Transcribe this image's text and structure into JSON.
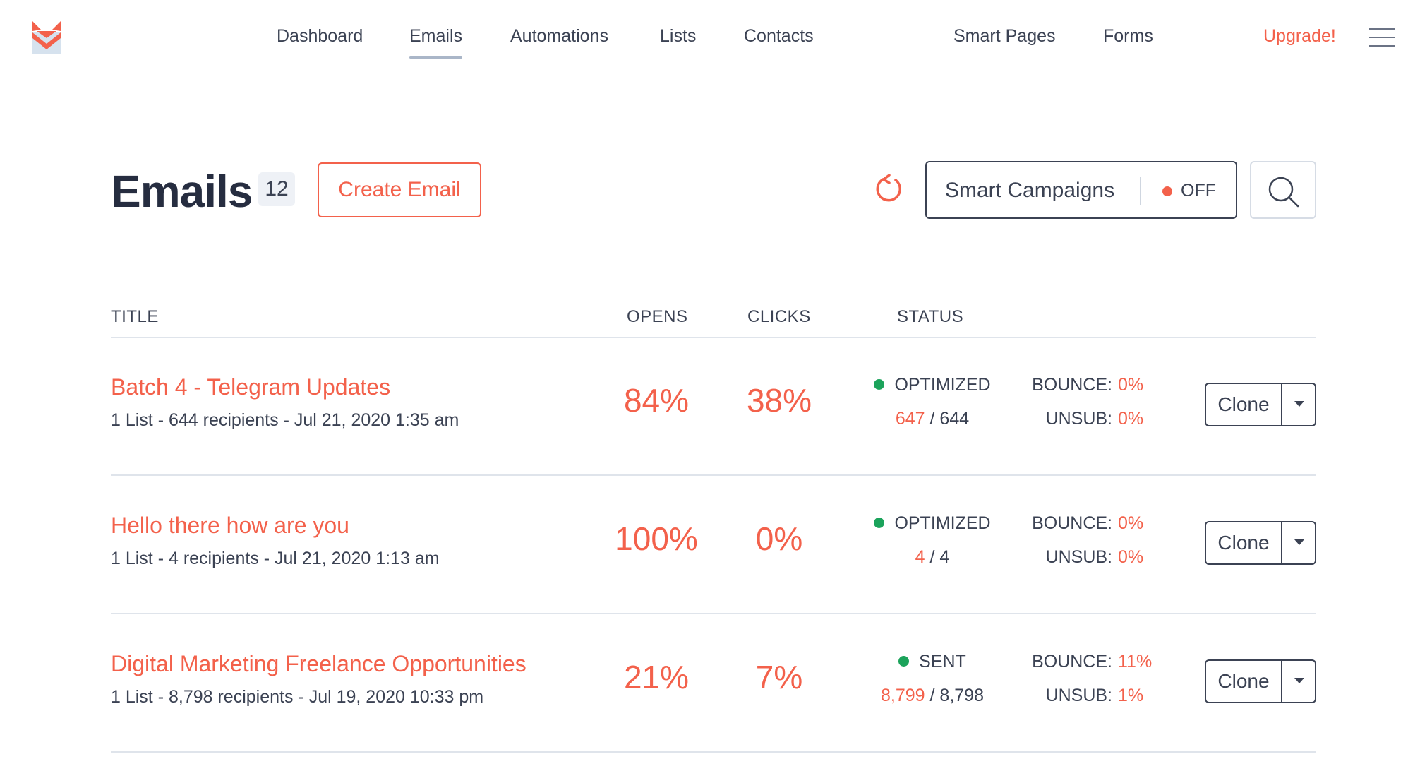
{
  "colors": {
    "accent": "#f3614b",
    "dark": "#3b4253",
    "green": "#1ba35b",
    "logo_blue": "#d6e2ee"
  },
  "nav": {
    "items": [
      {
        "label": "Dashboard",
        "active": false
      },
      {
        "label": "Emails",
        "active": true
      },
      {
        "label": "Automations",
        "active": false
      },
      {
        "label": "Lists",
        "active": false
      },
      {
        "label": "Contacts",
        "active": false
      },
      {
        "label": "Smart Pages",
        "active": false
      },
      {
        "label": "Forms",
        "active": false
      }
    ],
    "upgrade_label": "Upgrade!",
    "logo_icon": "fox-envelope-logo",
    "menu_icon": "hamburger-icon"
  },
  "header": {
    "title": "Emails",
    "count": "12",
    "create_label": "Create Email",
    "refresh_icon": "refresh-icon",
    "smart_campaigns_label": "Smart Campaigns",
    "smart_campaigns_status": "OFF",
    "search_icon": "search-icon"
  },
  "table": {
    "headers": {
      "title": "TITLE",
      "opens": "OPENS",
      "clicks": "CLICKS",
      "status": "STATUS"
    },
    "rows": [
      {
        "title": "Batch 4 - Telegram Updates",
        "meta": "1 List - 644 recipients - Jul 21, 2020 1:35 am",
        "opens": "84%",
        "clicks": "38%",
        "status": "OPTIMIZED",
        "sent": "647",
        "total": "644",
        "bounce_label": "BOUNCE:",
        "bounce": "0%",
        "unsub_label": "UNSUB:",
        "unsub": "0%",
        "clone_label": "Clone"
      },
      {
        "title": "Hello there how are you",
        "meta": "1 List - 4 recipients - Jul 21, 2020 1:13 am",
        "opens": "100%",
        "clicks": "0%",
        "status": "OPTIMIZED",
        "sent": "4",
        "total": "4",
        "bounce_label": "BOUNCE:",
        "bounce": "0%",
        "unsub_label": "UNSUB:",
        "unsub": "0%",
        "clone_label": "Clone"
      },
      {
        "title": "Digital Marketing Freelance Opportunities",
        "meta": "1 List - 8,798 recipients - Jul 19, 2020 10:33 pm",
        "opens": "21%",
        "clicks": "7%",
        "status": "SENT",
        "sent": "8,799",
        "total": "8,798",
        "bounce_label": "BOUNCE:",
        "bounce": "11%",
        "unsub_label": "UNSUB:",
        "unsub": "1%",
        "clone_label": "Clone"
      }
    ]
  }
}
